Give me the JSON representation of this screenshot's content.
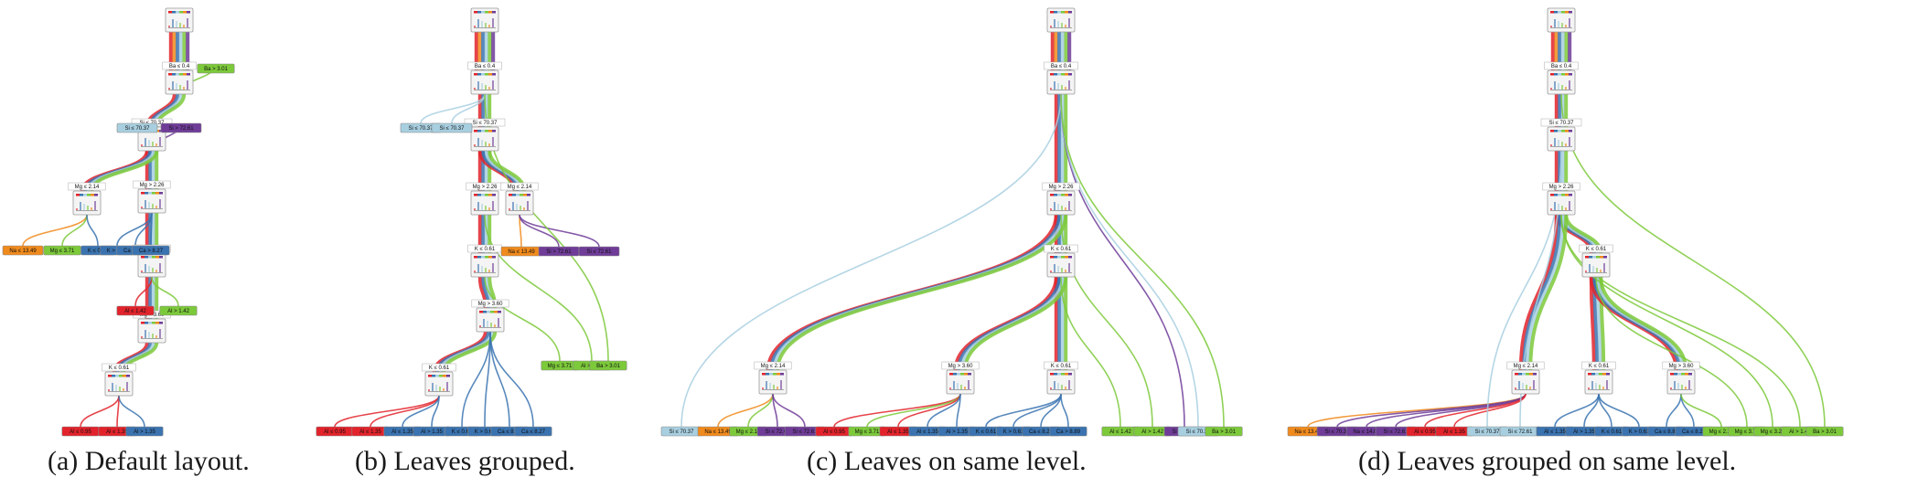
{
  "captions": [
    "(a)  Default layout.",
    "(b)  Leaves grouped.",
    "(c)  Leaves on same level.",
    "(d)  Leaves grouped on same level."
  ],
  "class_colors": {
    "red": "#e2232b",
    "orange": "#f08a1c",
    "light_blue": "#a8cfe0",
    "dark_blue": "#3a73b0",
    "green": "#7cc93a",
    "purple": "#6f3c98"
  },
  "panels": [
    {
      "id": "a",
      "internal": [
        {
          "label": "Ba ≤ 0.4"
        },
        {
          "label": "Si ≤ 70.37"
        },
        {
          "label": "Mg ≤ 2.14"
        },
        {
          "label": "Mg > 2.26"
        },
        {
          "label": "Mg ≤ 3.71"
        },
        {
          "label": "Mg > 3.60"
        },
        {
          "label": "K ≤ 0.61"
        }
      ],
      "leaves": [
        {
          "label": "Ba > 3.01",
          "color": "green"
        },
        {
          "label": "Si ≤ 70.37",
          "color": "light_blue"
        },
        {
          "label": "Si > 72.61",
          "color": "purple"
        },
        {
          "label": "Na ≤ 13.49",
          "color": "orange"
        },
        {
          "label": "Mg ≤ 3.71",
          "color": "green"
        },
        {
          "label": "K ≤ 0.61",
          "color": "dark_blue"
        },
        {
          "label": "K > 0.61",
          "color": "dark_blue"
        },
        {
          "label": "Ca ≤ 8.27",
          "color": "dark_blue"
        },
        {
          "label": "Ca > 8.27",
          "color": "dark_blue"
        },
        {
          "label": "Al ≤ 1.42",
          "color": "red"
        },
        {
          "label": "Al > 1.42",
          "color": "green"
        },
        {
          "label": "Al ≤ 0.95",
          "color": "red"
        },
        {
          "label": "Al ≤ 1.35",
          "color": "red"
        },
        {
          "label": "Al > 1.35",
          "color": "dark_blue"
        }
      ]
    },
    {
      "id": "b",
      "internal": [
        {
          "label": "Ba ≤ 0.4"
        },
        {
          "label": "Si ≤ 70.37"
        },
        {
          "label": "Mg > 2.26"
        },
        {
          "label": "Mg ≤ 2.14"
        },
        {
          "label": "K ≤ 0.61"
        },
        {
          "label": "Mg > 3.60"
        },
        {
          "label": "K ≤ 0.61"
        }
      ],
      "leaves": [
        {
          "label": "Si ≤ 70.37",
          "color": "light_blue"
        },
        {
          "label": "Si ≤ 70.37",
          "color": "light_blue"
        },
        {
          "label": "Na ≤ 13.49",
          "color": "orange"
        },
        {
          "label": "Si > 72.61",
          "color": "purple"
        },
        {
          "label": "Si ≤ 72.61",
          "color": "purple"
        },
        {
          "label": "Al ≤ 0.95",
          "color": "red"
        },
        {
          "label": "Al ≤ 1.35",
          "color": "red"
        },
        {
          "label": "Al ≤ 1.35",
          "color": "dark_blue"
        },
        {
          "label": "Al > 1.35",
          "color": "dark_blue"
        },
        {
          "label": "K ≤ 0.61",
          "color": "dark_blue"
        },
        {
          "label": "K > 0.61",
          "color": "dark_blue"
        },
        {
          "label": "Ca ≤ 8.89",
          "color": "dark_blue"
        },
        {
          "label": "Ca ≤ 8.27",
          "color": "dark_blue"
        },
        {
          "label": "Mg ≤ 3.71",
          "color": "green"
        },
        {
          "label": "Al > 1.42",
          "color": "green"
        },
        {
          "label": "Ba > 3.01",
          "color": "green"
        }
      ]
    },
    {
      "id": "c",
      "internal": [
        {
          "label": "Ba ≤ 0.4"
        },
        {
          "label": "Mg > 2.26"
        },
        {
          "label": "K ≤ 0.61"
        },
        {
          "label": "Mg ≤ 2.14"
        },
        {
          "label": "Mg > 3.60"
        },
        {
          "label": "K ≤ 0.61"
        }
      ],
      "leaves": [
        {
          "label": "Si ≤ 70.37",
          "color": "light_blue"
        },
        {
          "label": "Na ≤ 13.49",
          "color": "orange"
        },
        {
          "label": "Mg ≤ 2.14",
          "color": "green"
        },
        {
          "label": "Si ≤ 72.61",
          "color": "purple"
        },
        {
          "label": "Si ≤ 72.61",
          "color": "purple"
        },
        {
          "label": "Al ≤ 0.95",
          "color": "red"
        },
        {
          "label": "Mg ≤ 3.71",
          "color": "green"
        },
        {
          "label": "Al ≤ 1.35",
          "color": "red"
        },
        {
          "label": "Al ≤ 1.35",
          "color": "dark_blue"
        },
        {
          "label": "Al > 1.35",
          "color": "dark_blue"
        },
        {
          "label": "K ≤ 0.61",
          "color": "dark_blue"
        },
        {
          "label": "K > 0.61",
          "color": "dark_blue"
        },
        {
          "label": "Ca ≤ 8.27",
          "color": "dark_blue"
        },
        {
          "label": "Ca > 8.89",
          "color": "dark_blue"
        },
        {
          "label": "Al ≤ 1.42",
          "color": "green"
        },
        {
          "label": "Al > 1.42",
          "color": "green"
        },
        {
          "label": "Si > 72.61",
          "color": "purple"
        },
        {
          "label": "Si ≤ 70.37",
          "color": "light_blue"
        },
        {
          "label": "Ba > 3.01",
          "color": "green"
        }
      ]
    },
    {
      "id": "d",
      "internal": [
        {
          "label": "Ba ≤ 0.4"
        },
        {
          "label": "Si ≤ 70.37"
        },
        {
          "label": "Mg > 2.26"
        },
        {
          "label": "K ≤ 0.61"
        },
        {
          "label": "Mg ≤ 2.14"
        },
        {
          "label": "K ≤ 0.61"
        },
        {
          "label": "Mg > 3.60"
        }
      ],
      "leaves": [
        {
          "label": "Na ≤ 13.49",
          "color": "orange"
        },
        {
          "label": "Si ≤ 70.37",
          "color": "purple"
        },
        {
          "label": "Na ≤ 14.06",
          "color": "purple"
        },
        {
          "label": "Si ≤ 72.61",
          "color": "purple"
        },
        {
          "label": "Al ≤ 0.95",
          "color": "red"
        },
        {
          "label": "Al ≤ 1.35",
          "color": "red"
        },
        {
          "label": "Si ≤ 70.37",
          "color": "light_blue"
        },
        {
          "label": "Si ≤ 72.61",
          "color": "light_blue"
        },
        {
          "label": "Al ≤ 1.35",
          "color": "dark_blue"
        },
        {
          "label": "Al > 1.35",
          "color": "dark_blue"
        },
        {
          "label": "K ≤ 0.61",
          "color": "dark_blue"
        },
        {
          "label": "K > 0.61",
          "color": "dark_blue"
        },
        {
          "label": "Ca ≤ 8.89",
          "color": "dark_blue"
        },
        {
          "label": "Ca ≤ 8.27",
          "color": "dark_blue"
        },
        {
          "label": "Mg ≤ 2.14",
          "color": "green"
        },
        {
          "label": "Mg ≤ 3.71",
          "color": "green"
        },
        {
          "label": "Mg ≤ 3.21",
          "color": "green"
        },
        {
          "label": "Al > 1.42",
          "color": "green"
        },
        {
          "label": "Ba > 3.01",
          "color": "green"
        }
      ]
    }
  ]
}
